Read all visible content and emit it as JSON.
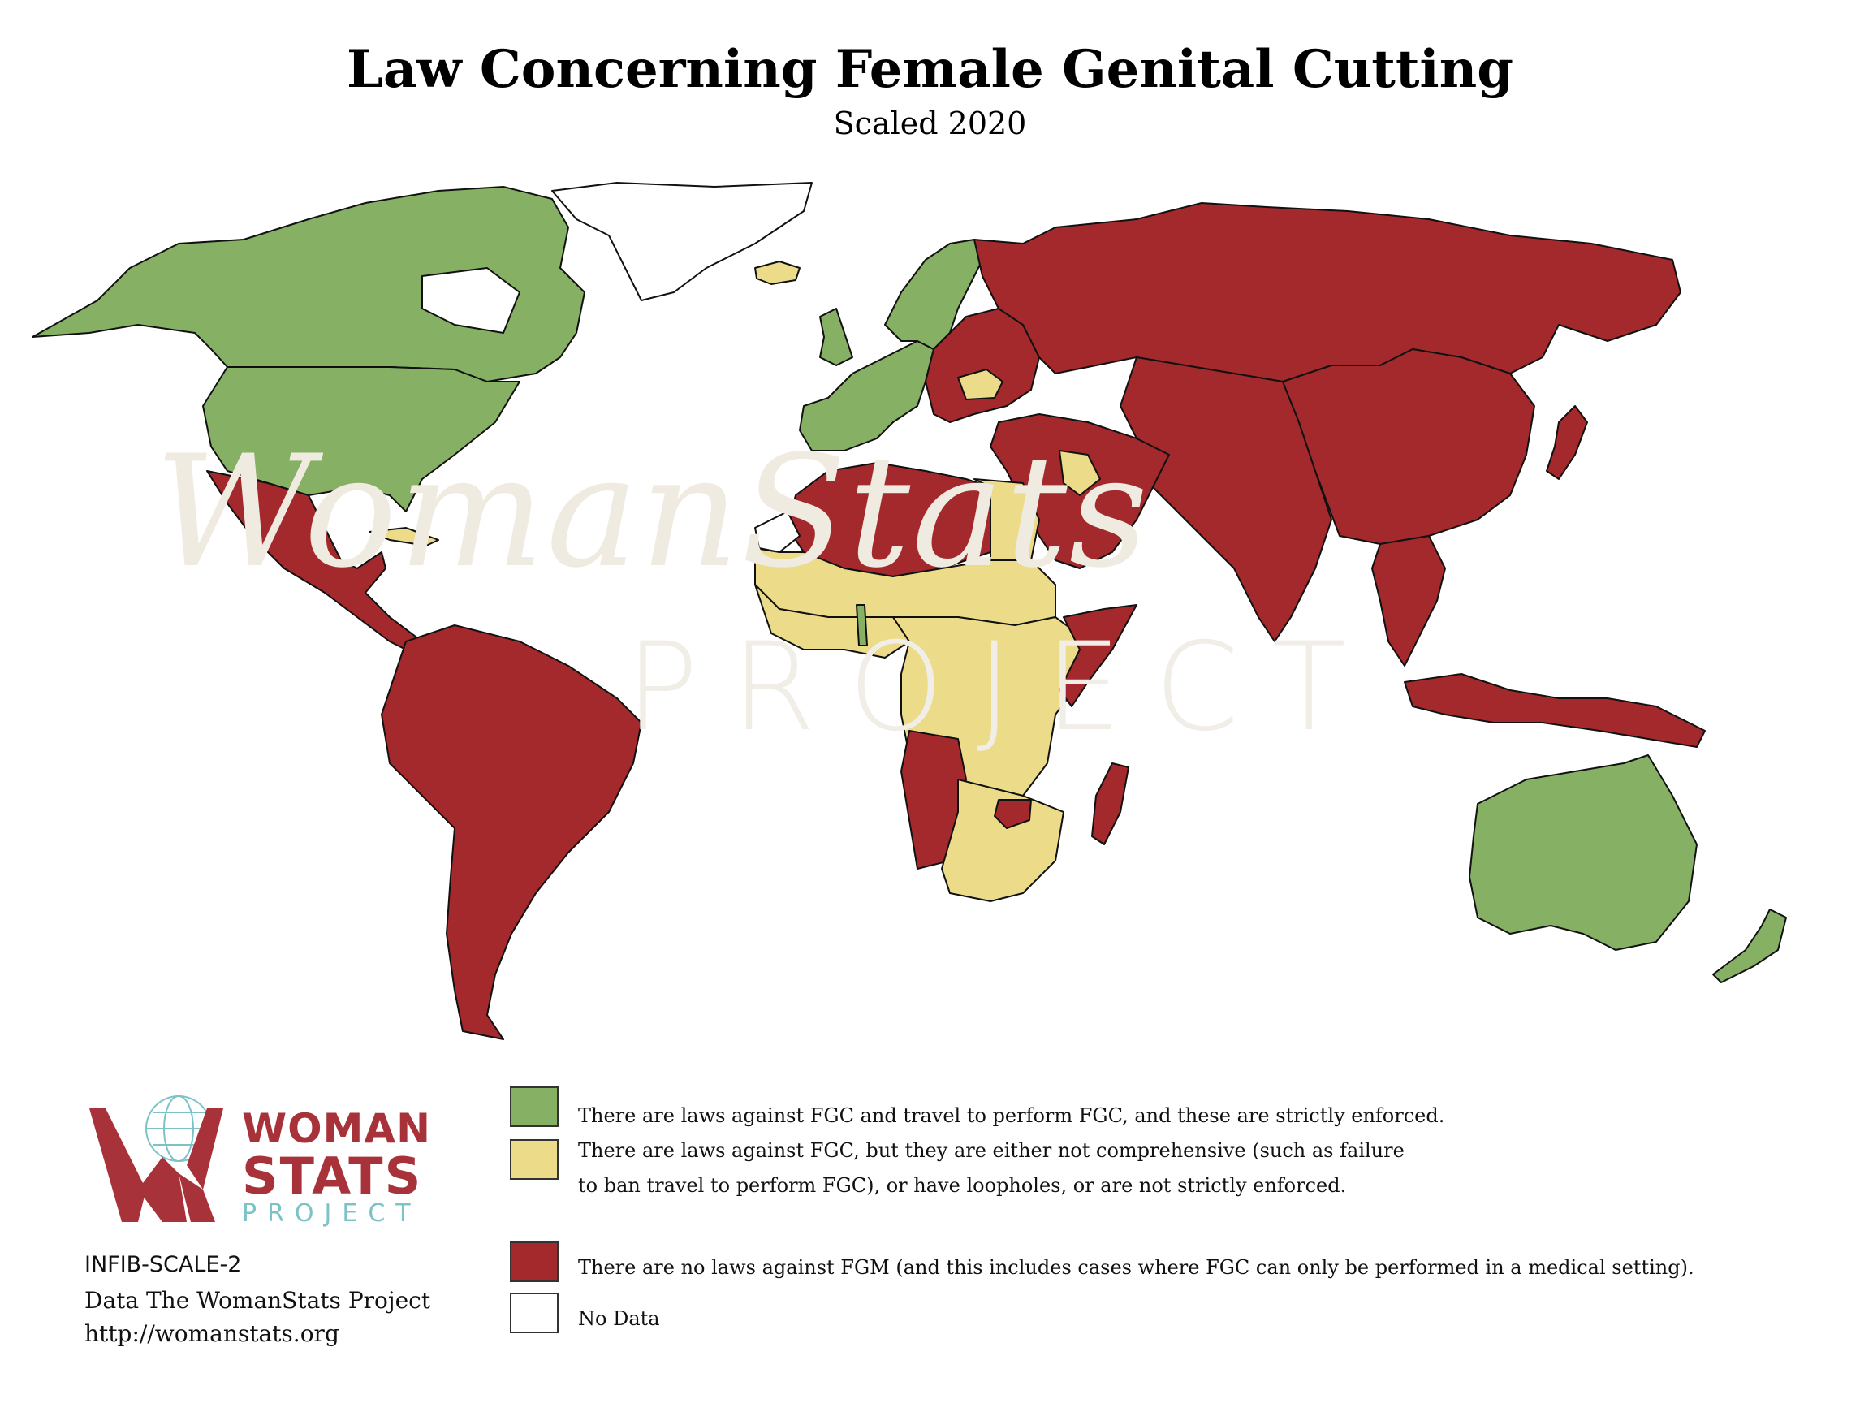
{
  "title": "Law Concerning Female Genital Cutting",
  "subtitle": "Scaled 2020",
  "watermark": {
    "main": "WomanStats",
    "sub": "PROJECT"
  },
  "colors": {
    "strict": "#86b064",
    "partial": "#ecdc8a",
    "none": "#a3292c",
    "no_data": "#ffffff",
    "border": "#111111",
    "logo_red": "#a8323a",
    "logo_teal": "#7cc3c8"
  },
  "legend": [
    {
      "key": "strict",
      "label_lines": [
        "There are laws against FGC and travel to perform FGC, and these are strictly enforced."
      ]
    },
    {
      "key": "partial",
      "label_lines": [
        "There are laws against FGC, but they are either not comprehensive (such as failure",
        "to ban travel to perform FGC), or have loopholes, or are not strictly enforced."
      ]
    },
    {
      "key": "none",
      "label_lines": [
        "There are no laws against FGM (and this includes cases where FGC can only be performed in a medical setting)."
      ]
    },
    {
      "key": "no_data",
      "label_lines": [
        "No Data"
      ]
    }
  ],
  "logo": {
    "line1": "WOMAN",
    "line2": "STATS",
    "line3": "PROJECT"
  },
  "source": {
    "code": "INFIB-SCALE-2",
    "data": "Data The WomanStats Project",
    "url": "http://womanstats.org"
  },
  "regions": [
    {
      "name": "canada",
      "category": "strict"
    },
    {
      "name": "united-states",
      "category": "strict"
    },
    {
      "name": "greenland",
      "category": "no_data"
    },
    {
      "name": "iceland",
      "category": "partial"
    },
    {
      "name": "mexico-central-america",
      "category": "none"
    },
    {
      "name": "cuba",
      "category": "partial"
    },
    {
      "name": "south-america",
      "category": "none"
    },
    {
      "name": "western-europe",
      "category": "strict"
    },
    {
      "name": "scandinavia",
      "category": "strict"
    },
    {
      "name": "eastern-europe",
      "category": "none"
    },
    {
      "name": "romania",
      "category": "partial"
    },
    {
      "name": "russia",
      "category": "none"
    },
    {
      "name": "middle-east",
      "category": "none"
    },
    {
      "name": "iraq",
      "category": "partial"
    },
    {
      "name": "north-africa",
      "category": "none"
    },
    {
      "name": "egypt",
      "category": "partial"
    },
    {
      "name": "western-sahara",
      "category": "no_data"
    },
    {
      "name": "sahel",
      "category": "partial"
    },
    {
      "name": "west-africa",
      "category": "partial"
    },
    {
      "name": "togo",
      "category": "strict"
    },
    {
      "name": "central-east-africa",
      "category": "partial"
    },
    {
      "name": "somalia",
      "category": "none"
    },
    {
      "name": "angola-namibia",
      "category": "none"
    },
    {
      "name": "southern-africa",
      "category": "partial"
    },
    {
      "name": "zimbabwe",
      "category": "none"
    },
    {
      "name": "madagascar",
      "category": "none"
    },
    {
      "name": "central-south-asia",
      "category": "none"
    },
    {
      "name": "china-east-asia",
      "category": "none"
    },
    {
      "name": "japan",
      "category": "none"
    },
    {
      "name": "southeast-asia",
      "category": "none"
    },
    {
      "name": "indonesia-png",
      "category": "none"
    },
    {
      "name": "australia",
      "category": "strict"
    },
    {
      "name": "new-zealand",
      "category": "strict"
    }
  ]
}
